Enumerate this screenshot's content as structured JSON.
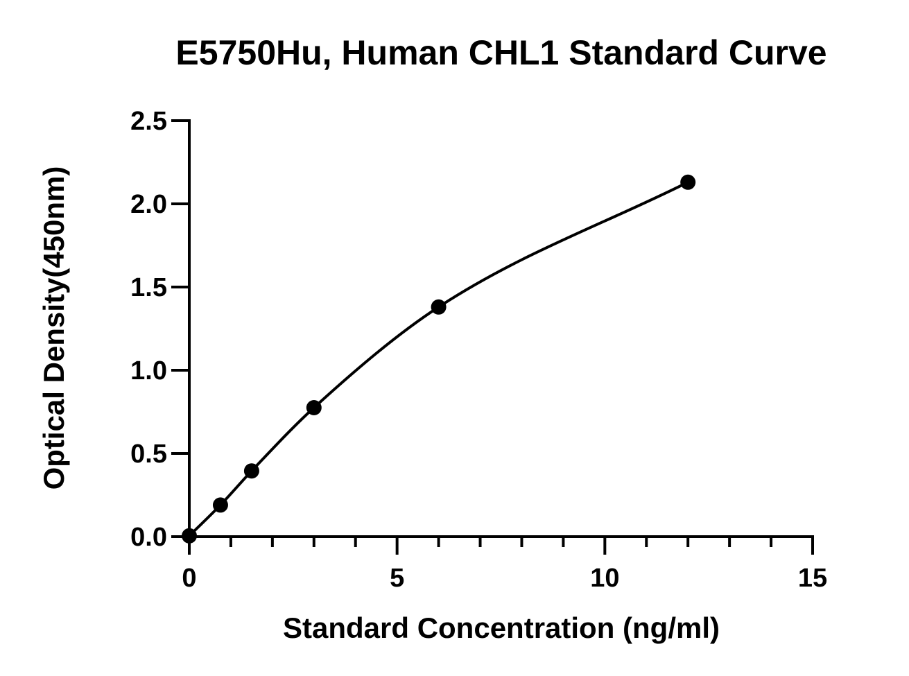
{
  "chart_data": {
    "type": "scatter",
    "title": "E5750Hu, Human CHL1 Standard Curve",
    "xlabel": "Standard Concentration (ng/ml)",
    "ylabel": "Optical Density(450nm)",
    "xlim": [
      0,
      15
    ],
    "ylim": [
      0,
      2.5
    ],
    "x_ticks": [
      "0",
      "5",
      "10",
      "15"
    ],
    "y_ticks": [
      "0.0",
      "0.5",
      "1.0",
      "1.5",
      "2.0",
      "2.5"
    ],
    "grid": false,
    "legend": "none",
    "fit_curve": "smooth standard-curve fit through the points",
    "series": [
      {
        "x": [
          0,
          0.75,
          1.5,
          3,
          6,
          12
        ],
        "y": [
          0.005,
          0.19,
          0.395,
          0.775,
          1.38,
          2.13
        ]
      }
    ]
  }
}
